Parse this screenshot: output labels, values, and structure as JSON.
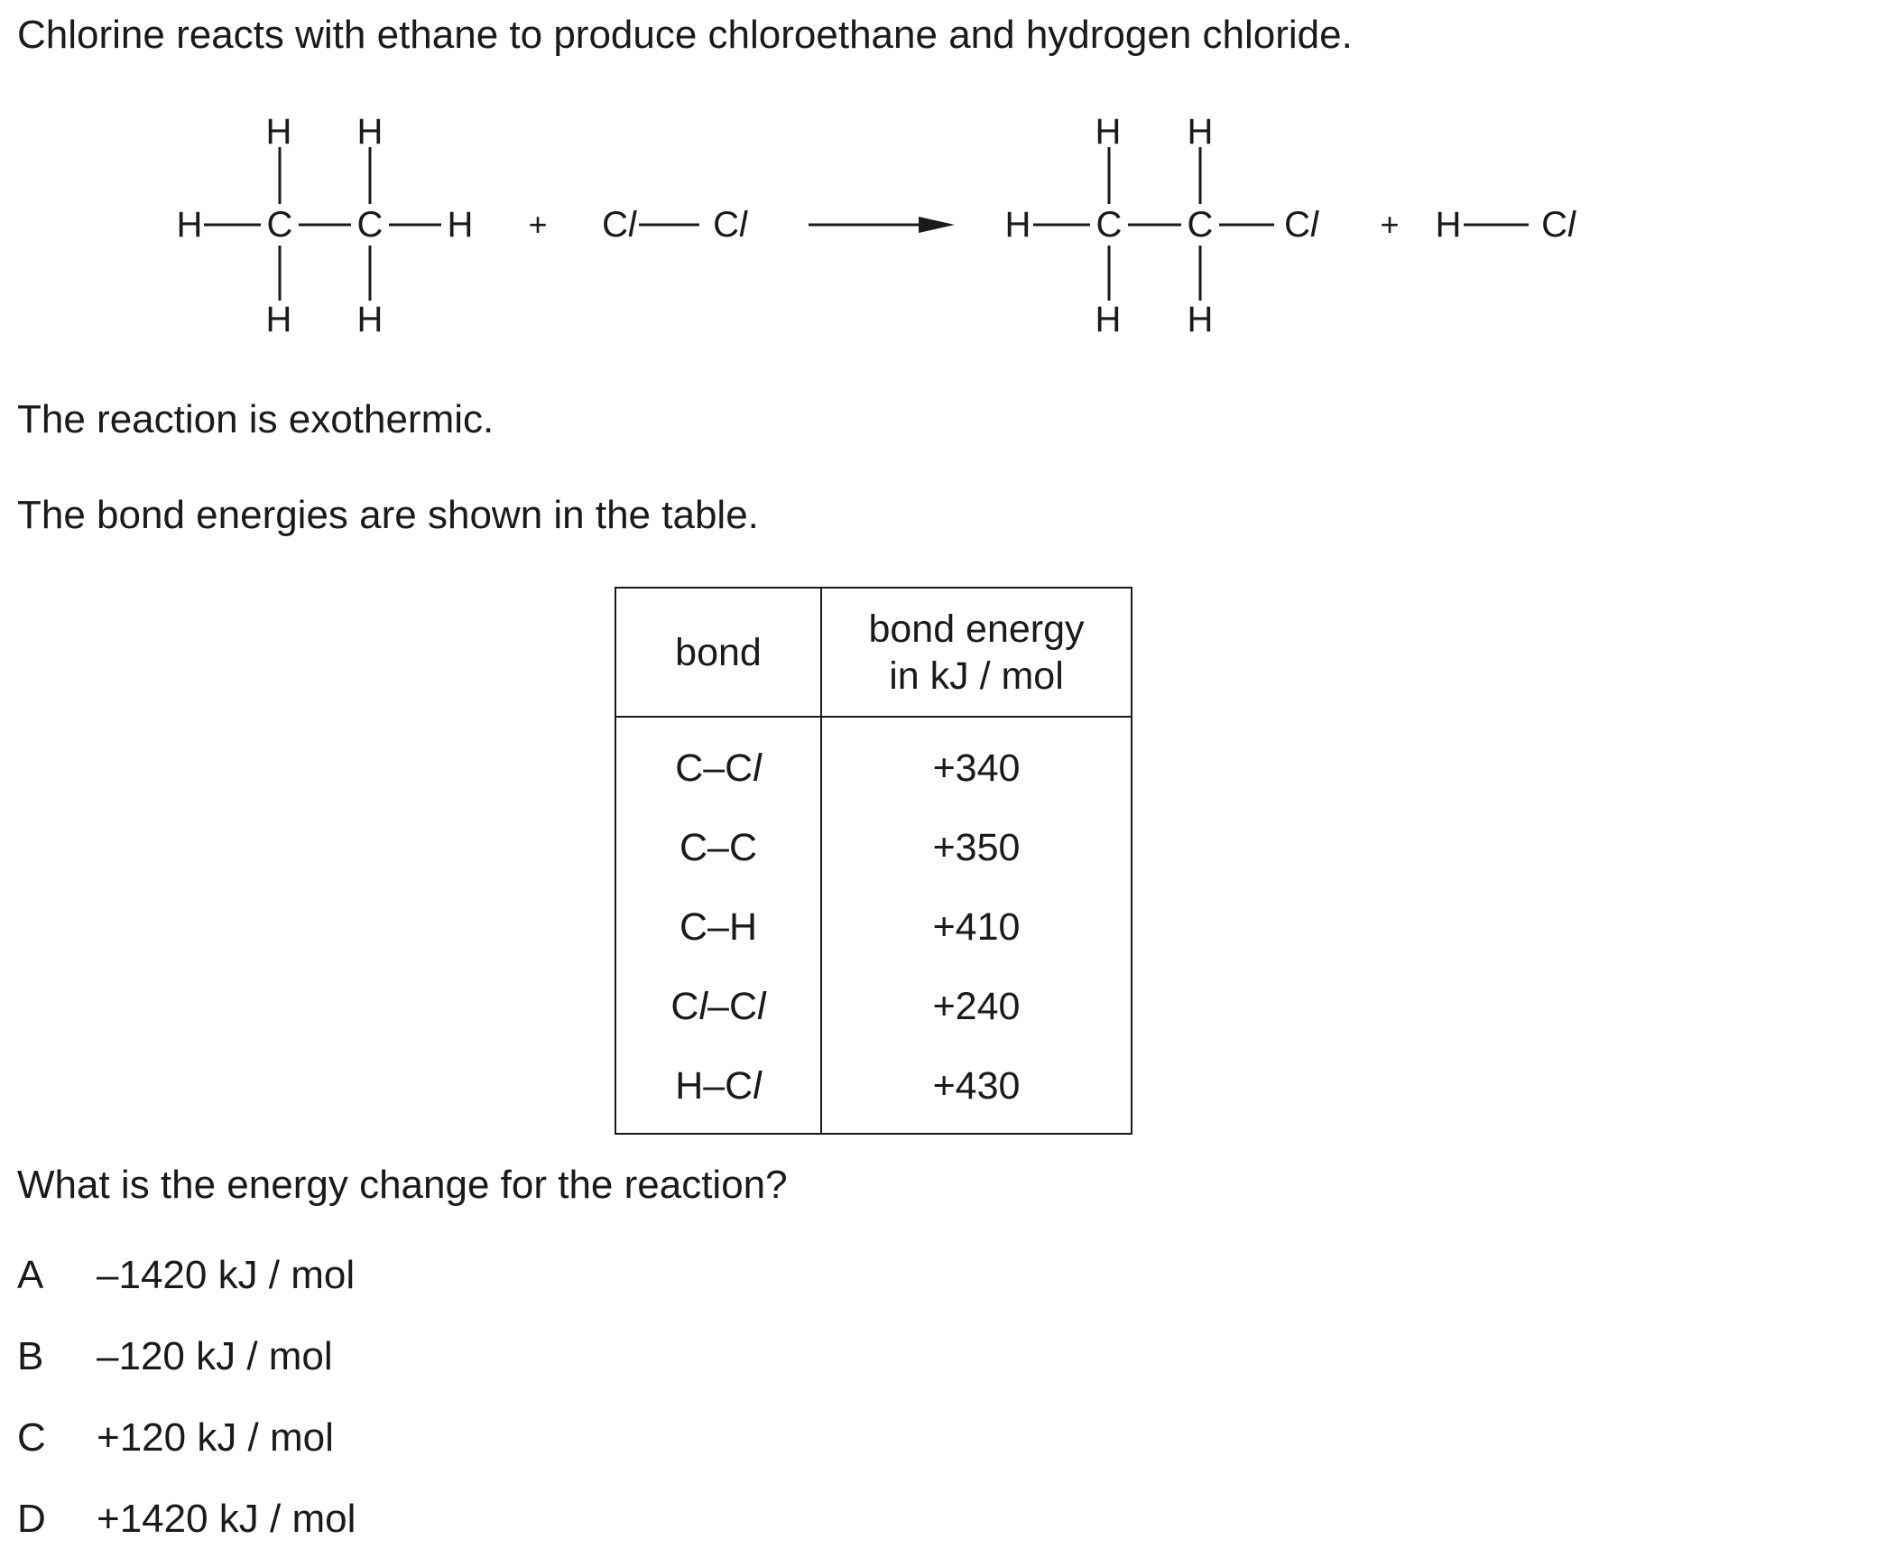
{
  "intro": "Chlorine reacts with ethane to produce chloroethane and hydrogen chloride.",
  "reaction": {
    "H": "H",
    "C": "C",
    "Cl": "Cl",
    "plus": "+"
  },
  "exothermic": "The reaction is exothermic.",
  "table_intro": "The bond energies are shown in the table.",
  "table": {
    "header_bond": "bond",
    "header_energy_line1": "bond energy",
    "header_energy_line2": "in kJ / mol",
    "rows": [
      {
        "bond": "C–Cl",
        "energy": "+340"
      },
      {
        "bond": "C–C",
        "energy": "+350"
      },
      {
        "bond": "C–H",
        "energy": "+410"
      },
      {
        "bond": "Cl–Cl",
        "energy": "+240"
      },
      {
        "bond": "H–Cl",
        "energy": "+430"
      }
    ]
  },
  "question": "What is the energy change for the reaction?",
  "options": [
    {
      "letter": "A",
      "text": "–1420 kJ / mol"
    },
    {
      "letter": "B",
      "text": "–120 kJ / mol"
    },
    {
      "letter": "C",
      "text": "+120 kJ / mol"
    },
    {
      "letter": "D",
      "text": "+1420 kJ / mol"
    }
  ]
}
